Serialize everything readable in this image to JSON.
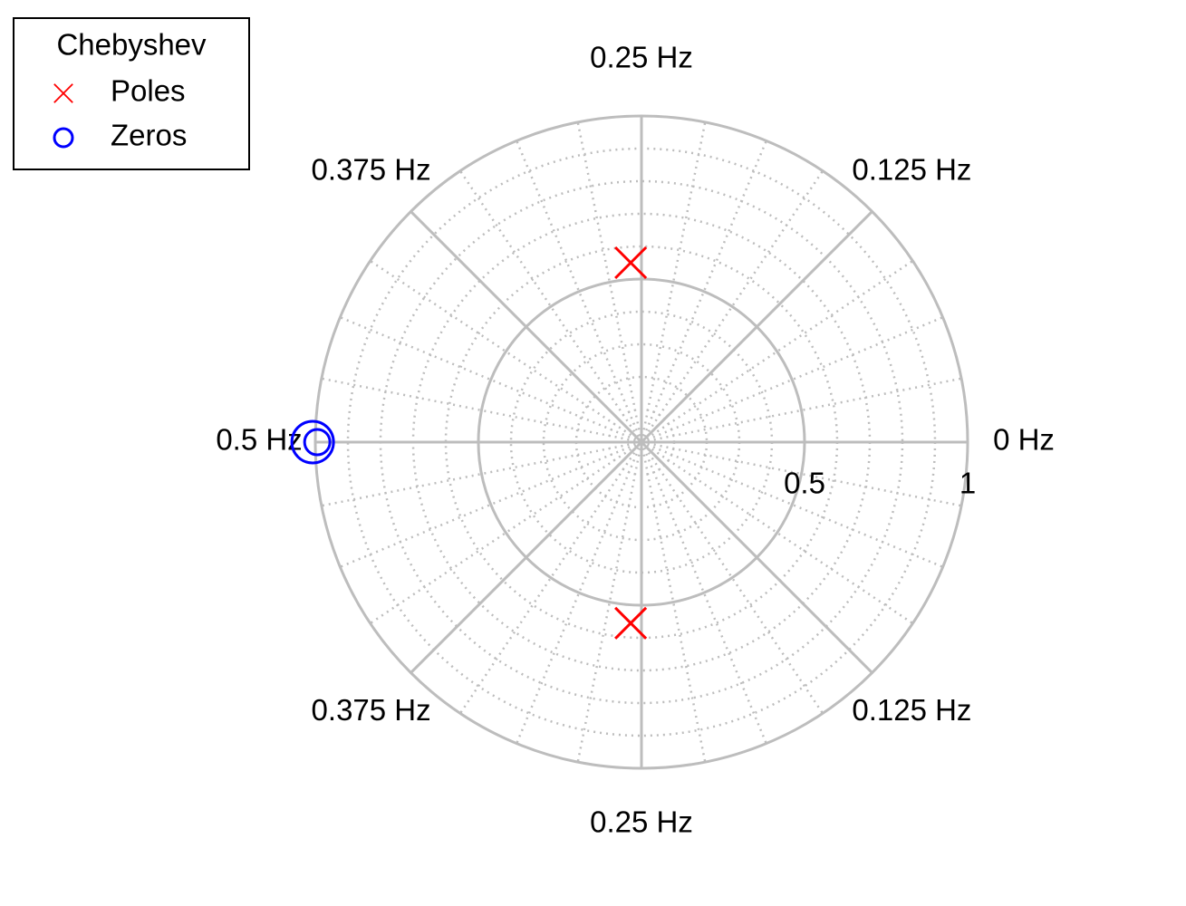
{
  "chart_data": {
    "type": "pole-zero",
    "legend_title": "Chebyshev",
    "legend": "upper left",
    "series": [
      {
        "name": "Poles",
        "color": "#ff0000",
        "marker": "x",
        "x": [
          -0.033,
          -0.033
        ],
        "y": [
          0.55,
          -0.555
        ]
      },
      {
        "name": "Zeros",
        "color": "#0000ff",
        "marker": "o",
        "x": [
          -1.008,
          -0.994
        ],
        "y": [
          0,
          0
        ]
      }
    ],
    "rlim": [
      0,
      1
    ],
    "rticks": [
      0.5,
      1
    ],
    "rminorticks": [
      0.1,
      0.2,
      0.3,
      0.4,
      0.6,
      0.7,
      0.8,
      0.9
    ],
    "thetaticks": [
      {
        "value": 0,
        "label": "0 Hz"
      },
      {
        "value": 45,
        "label": "0.125 Hz"
      },
      {
        "value": 90,
        "label": "0.25 Hz"
      },
      {
        "value": 135,
        "label": "0.375 Hz"
      },
      {
        "value": 180,
        "label": "0.5 Hz"
      },
      {
        "value": 225,
        "label": "0.375 Hz"
      },
      {
        "value": 270,
        "label": "0.25 Hz"
      },
      {
        "value": 315,
        "label": "0.125 Hz"
      }
    ],
    "thetaminorticks": [
      11.25,
      22.5,
      33.75,
      56.25,
      67.5,
      78.75,
      101.25,
      112.5,
      123.75,
      146.25,
      157.5,
      168.75,
      191.25,
      202.5,
      213.75,
      236.25,
      247.5,
      258.75,
      281.25,
      292.5,
      303.75,
      326.25,
      337.5,
      348.75
    ],
    "grid": true
  }
}
